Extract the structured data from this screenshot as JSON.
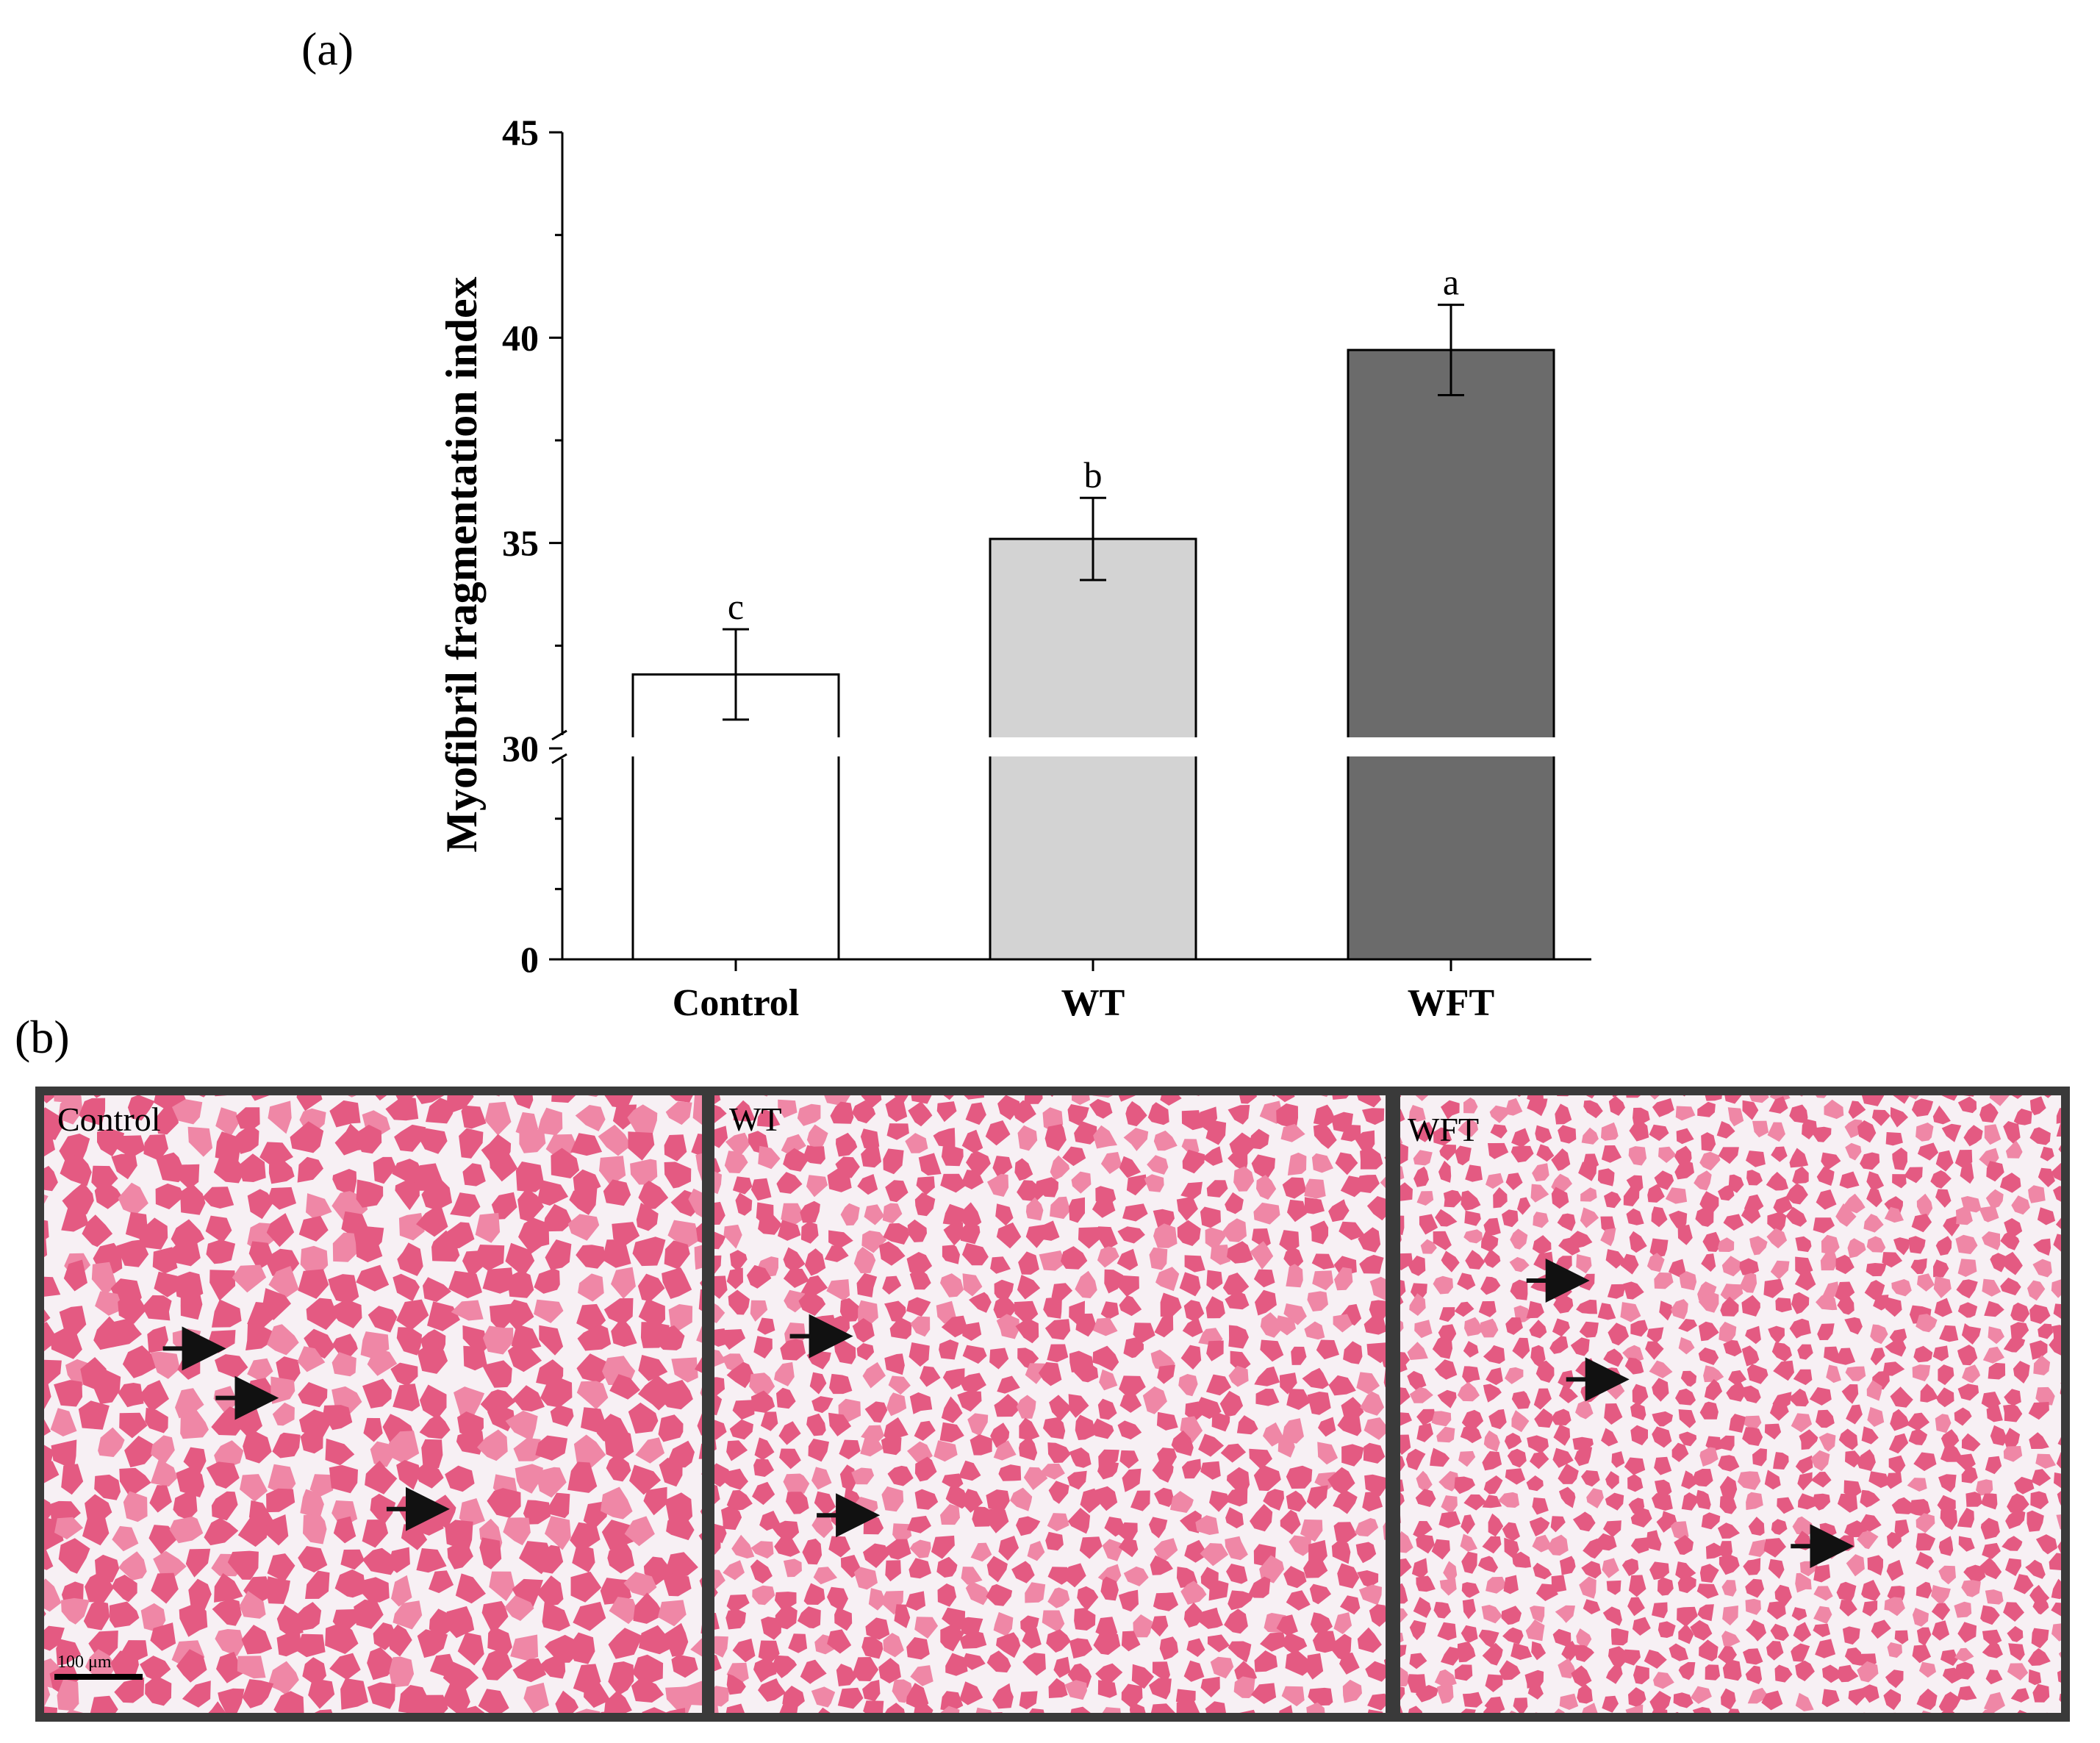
{
  "panel_a_label": "(a)",
  "panel_b_label": "(b)",
  "chart_data": {
    "type": "bar",
    "categories": [
      "Control",
      "WT",
      "WFT"
    ],
    "values": [
      31.8,
      35.1,
      39.7
    ],
    "errors": [
      1.1,
      1.0,
      1.1
    ],
    "significance": [
      "c",
      "b",
      "a"
    ],
    "bar_colors": [
      "#ffffff",
      "#d3d3d3",
      "#6b6b6b"
    ],
    "ylabel": "Myofibril fragmentation index",
    "xlabel": "",
    "ylim": [
      0,
      45
    ],
    "axis_break": [
      0,
      30
    ],
    "yticks": [
      0,
      30,
      35,
      40,
      45
    ],
    "grid": false
  },
  "micrographs": [
    {
      "label": "Control",
      "arrows": [
        [
          0.27,
          0.41
        ],
        [
          0.35,
          0.49
        ],
        [
          0.61,
          0.67
        ]
      ]
    },
    {
      "label": "WT",
      "arrows": [
        [
          0.2,
          0.39
        ],
        [
          0.24,
          0.68
        ]
      ]
    },
    {
      "label": "WFT",
      "arrows": [
        [
          0.28,
          0.3
        ],
        [
          0.34,
          0.46
        ],
        [
          0.68,
          0.73
        ]
      ]
    }
  ],
  "scale_bar_label": "100 μm",
  "colors": {
    "tissue": "#e45a82",
    "tissue_light": "#ef87a6",
    "gap": "#f7f0f4",
    "frame": "#3a3a3a"
  }
}
